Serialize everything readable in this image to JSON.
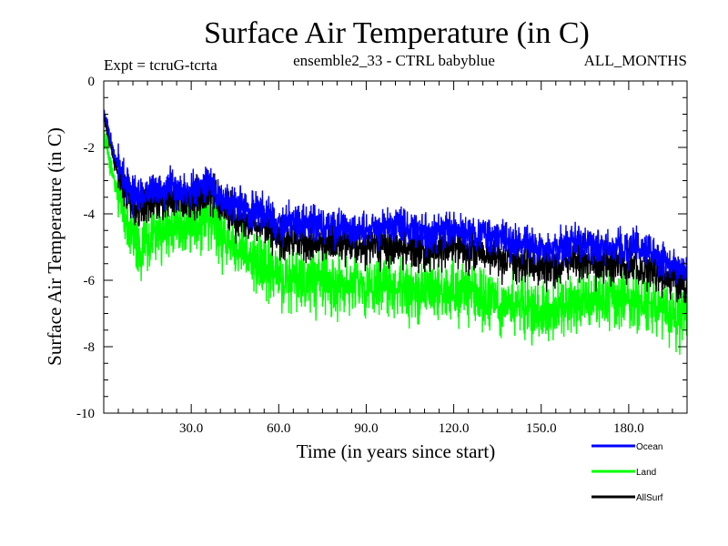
{
  "chart_data": {
    "type": "line",
    "title": "Surface Air Temperature (in C)",
    "subtitle": "ensemble2_33 - CTRL babyblue",
    "expt_label": "Expt = tcruG-tcrta",
    "period_label": "ALL_MONTHS",
    "xlabel": "Time (in years since start)",
    "ylabel": "Surface Air Temperature (in C)",
    "xlim": [
      0,
      200
    ],
    "ylim": [
      -10,
      0
    ],
    "xticks": [
      30,
      60,
      90,
      120,
      150,
      180
    ],
    "xtick_labels": [
      "30.0",
      "60.0",
      "90.0",
      "120.0",
      "150.0",
      "180.0"
    ],
    "yticks": [
      0,
      -2,
      -4,
      -6,
      -8,
      -10
    ],
    "ytick_labels": [
      "0",
      "-2",
      "-4",
      "-6",
      "-8",
      "-10"
    ],
    "grid": false,
    "legend_position": "bottom-right, below plot",
    "x": [
      0,
      2,
      4,
      6,
      8,
      10,
      12,
      15,
      18,
      20,
      23,
      26,
      30,
      33,
      36,
      40,
      43,
      46,
      50,
      53,
      56,
      60,
      63,
      66,
      70,
      75,
      80,
      85,
      90,
      95,
      100,
      105,
      110,
      115,
      120,
      125,
      130,
      135,
      140,
      145,
      150,
      155,
      160,
      165,
      170,
      175,
      180,
      185,
      190,
      195,
      200
    ],
    "series": [
      {
        "name": "Ocean",
        "color": "#0000ff",
        "values": [
          -0.8,
          -1.7,
          -2.3,
          -2.8,
          -3.1,
          -3.4,
          -3.5,
          -3.4,
          -3.3,
          -3.3,
          -3.2,
          -3.2,
          -3.3,
          -3.2,
          -3.0,
          -3.5,
          -3.7,
          -3.7,
          -3.9,
          -3.9,
          -4.0,
          -4.3,
          -4.3,
          -4.2,
          -4.3,
          -4.3,
          -4.4,
          -4.4,
          -4.5,
          -4.4,
          -4.4,
          -4.5,
          -4.6,
          -4.5,
          -4.5,
          -4.6,
          -4.6,
          -4.7,
          -4.8,
          -4.9,
          -5.1,
          -5.1,
          -4.9,
          -4.9,
          -5.0,
          -5.0,
          -5.0,
          -5.1,
          -5.3,
          -5.5,
          -5.6
        ]
      },
      {
        "name": "Land",
        "color": "#00ff00",
        "values": [
          -1.5,
          -2.4,
          -3.1,
          -3.7,
          -4.1,
          -4.6,
          -5.0,
          -4.8,
          -4.6,
          -4.5,
          -4.4,
          -4.3,
          -4.4,
          -4.3,
          -4.0,
          -4.6,
          -4.9,
          -5.0,
          -5.3,
          -5.4,
          -5.6,
          -5.8,
          -5.9,
          -5.9,
          -6.0,
          -6.0,
          -6.2,
          -6.1,
          -6.2,
          -6.1,
          -6.2,
          -6.3,
          -6.4,
          -6.3,
          -6.3,
          -6.4,
          -6.5,
          -6.6,
          -6.7,
          -6.8,
          -7.0,
          -6.9,
          -6.7,
          -6.6,
          -6.7,
          -6.6,
          -6.6,
          -6.6,
          -6.8,
          -7.0,
          -7.1
        ]
      },
      {
        "name": "AllSurf",
        "color": "#000000",
        "values": [
          -1.0,
          -1.9,
          -2.5,
          -3.0,
          -3.4,
          -3.7,
          -3.9,
          -3.8,
          -3.7,
          -3.6,
          -3.5,
          -3.5,
          -3.6,
          -3.5,
          -3.3,
          -3.8,
          -4.0,
          -4.1,
          -4.3,
          -4.3,
          -4.4,
          -4.7,
          -4.7,
          -4.7,
          -4.8,
          -4.8,
          -4.9,
          -4.9,
          -5.0,
          -4.9,
          -5.0,
          -5.0,
          -5.1,
          -5.0,
          -5.0,
          -5.1,
          -5.2,
          -5.3,
          -5.4,
          -5.5,
          -5.6,
          -5.6,
          -5.4,
          -5.4,
          -5.5,
          -5.5,
          -5.5,
          -5.6,
          -5.8,
          -6.0,
          -6.1
        ]
      }
    ]
  }
}
